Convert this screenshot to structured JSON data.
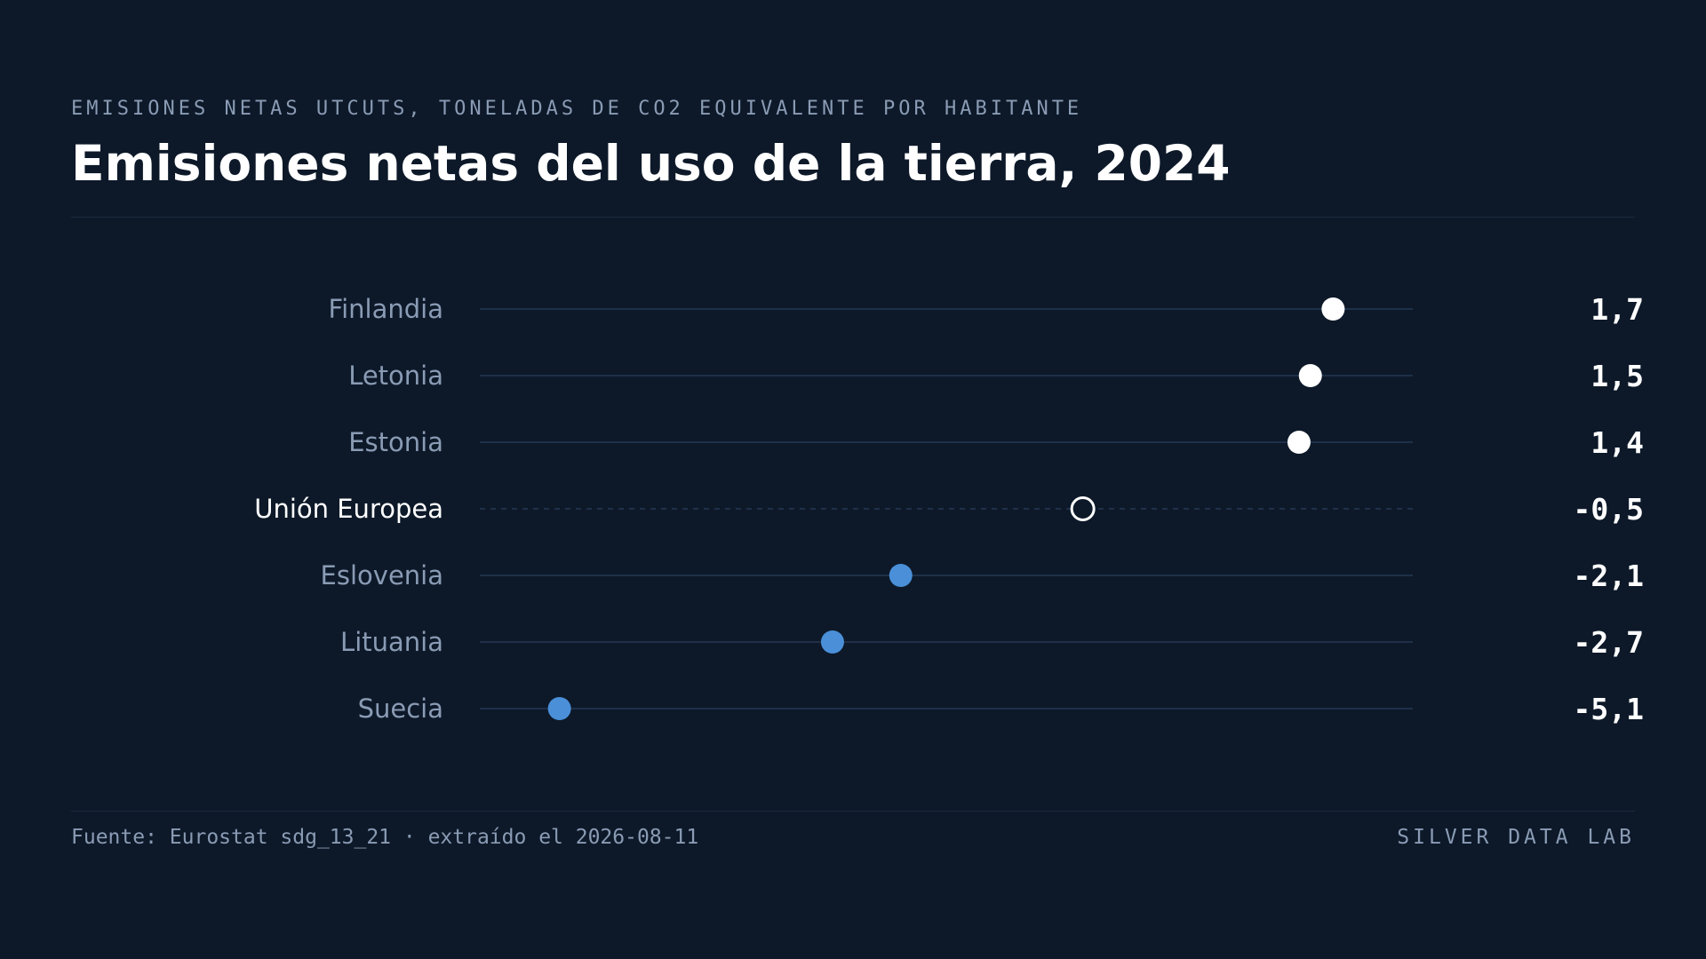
{
  "header": {
    "eyebrow": "EMISIONES NETAS UTCUTS, TONELADAS DE CO2 EQUIVALENTE POR HABITANTE",
    "title": "Emisiones netas del uso de la tierra, 2024"
  },
  "footer": {
    "source": "Fuente: Eurostat sdg_13_21 · extraído el 2026-08-11",
    "brand": "SILVER DATA LAB"
  },
  "colors": {
    "background": "#0d1929",
    "positive_dot": "#ffffff",
    "negative_dot": "#4a8fd8",
    "reference_dot_stroke": "#ffffff",
    "track": "#1e3049",
    "label": "#8a9bb4",
    "label_highlight": "#ffffff",
    "value": "#ffffff"
  },
  "chart_data": {
    "type": "scatter",
    "subtype": "dot-plot",
    "title": "Emisiones netas del uso de la tierra, 2024",
    "unit": "toneladas de CO2 equivalente por habitante",
    "xlim": [
      -5.8,
      2.4
    ],
    "grid": false,
    "legend": "none",
    "categories": [
      "Finlandia",
      "Letonia",
      "Estonia",
      "Unión Europea",
      "Eslovenia",
      "Lituania",
      "Suecia"
    ],
    "values": [
      1.7,
      1.5,
      1.4,
      -0.5,
      -2.1,
      -2.7,
      -5.1
    ],
    "value_labels": [
      "1,7",
      "1,5",
      "1,4",
      "-0,5",
      "-2,1",
      "-2,7",
      "-5,1"
    ],
    "reference_category": "Unión Europea"
  }
}
